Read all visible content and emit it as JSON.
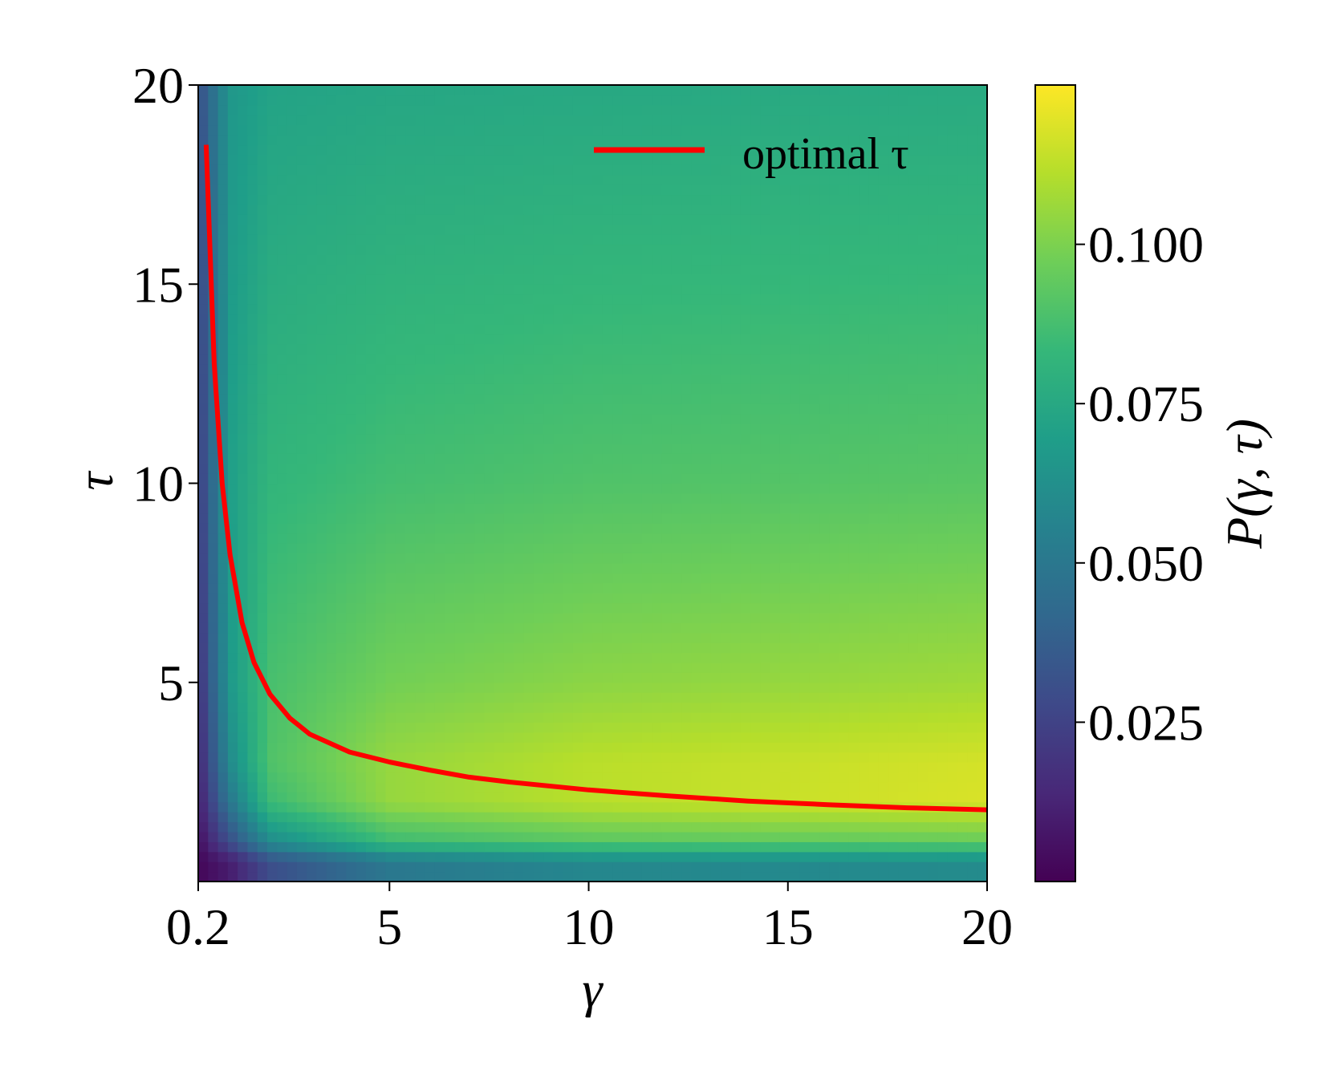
{
  "chart_data": {
    "type": "heatmap",
    "x_axis": {
      "label": "γ",
      "range": [
        0.2,
        20
      ],
      "ticks": [
        0.2,
        5,
        10,
        15,
        20
      ],
      "tick_labels": [
        "0.2",
        "5",
        "10",
        "15",
        "20"
      ]
    },
    "y_axis": {
      "label": "τ",
      "range": [
        0,
        20
      ],
      "ticks": [
        5,
        10,
        15,
        20
      ],
      "tick_labels": [
        "5",
        "10",
        "15",
        "20"
      ]
    },
    "colorbar": {
      "label": "P(γ, τ)",
      "range": [
        0.0,
        0.125
      ],
      "ticks": [
        0.025,
        0.05,
        0.075,
        0.1
      ],
      "tick_labels": [
        "0.025",
        "0.050",
        "0.075",
        "0.100"
      ],
      "colormap": "viridis"
    },
    "heatmap_samples": {
      "gamma": [
        0.2,
        1,
        2,
        5,
        10,
        20
      ],
      "tau": [
        0.5,
        1,
        2,
        3,
        5,
        10,
        20
      ],
      "values": [
        [
          0.002,
          0.01,
          0.03,
          0.05,
          0.058,
          0.06
        ],
        [
          0.005,
          0.03,
          0.06,
          0.085,
          0.092,
          0.095
        ],
        [
          0.01,
          0.05,
          0.085,
          0.105,
          0.112,
          0.118
        ],
        [
          0.013,
          0.06,
          0.09,
          0.105,
          0.112,
          0.117
        ],
        [
          0.017,
          0.067,
          0.088,
          0.098,
          0.103,
          0.107
        ],
        [
          0.022,
          0.07,
          0.082,
          0.087,
          0.09,
          0.092
        ],
        [
          0.03,
          0.066,
          0.072,
          0.074,
          0.075,
          0.076
        ]
      ]
    },
    "series": [
      {
        "name": "optimal τ",
        "color": "#ff0000",
        "x": [
          0.4,
          0.6,
          0.8,
          1.0,
          1.3,
          1.6,
          2.0,
          2.5,
          3.0,
          4.0,
          5.0,
          6.0,
          7.0,
          8.0,
          10.0,
          12.0,
          14.0,
          16.0,
          18.0,
          20.0
        ],
        "y": [
          18.5,
          13.0,
          10.0,
          8.2,
          6.5,
          5.5,
          4.7,
          4.1,
          3.7,
          3.25,
          3.0,
          2.8,
          2.62,
          2.5,
          2.3,
          2.15,
          2.02,
          1.93,
          1.85,
          1.8
        ]
      }
    ],
    "legend": {
      "position": "top-right"
    },
    "grid": false
  },
  "colors": {
    "viridis": [
      "#440154",
      "#482878",
      "#3e4989",
      "#31688e",
      "#26828e",
      "#1f9e89",
      "#35b779",
      "#6ece58",
      "#b5de2b",
      "#fde725"
    ],
    "axis": "#000000"
  }
}
